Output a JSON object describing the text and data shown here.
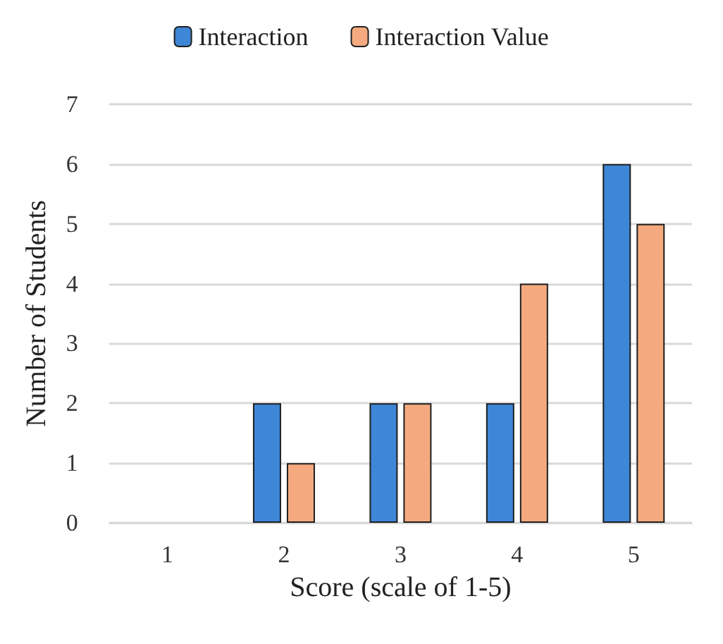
{
  "chart_data": {
    "type": "bar",
    "xlabel": "Score (scale of 1-5)",
    "ylabel": "Number of Students",
    "categories": [
      "1",
      "2",
      "3",
      "4",
      "5"
    ],
    "series": [
      {
        "name": "Interaction",
        "color": "#3e86d6",
        "values": [
          0,
          2,
          2,
          2,
          6
        ]
      },
      {
        "name": "Interaction Value",
        "color": "#f4aa7e",
        "values": [
          0,
          1,
          2,
          4,
          5
        ]
      }
    ],
    "ylim": [
      0,
      7
    ],
    "yticks": [
      0,
      1,
      2,
      3,
      4,
      5,
      6,
      7
    ],
    "grid": "y",
    "legend": "top"
  }
}
